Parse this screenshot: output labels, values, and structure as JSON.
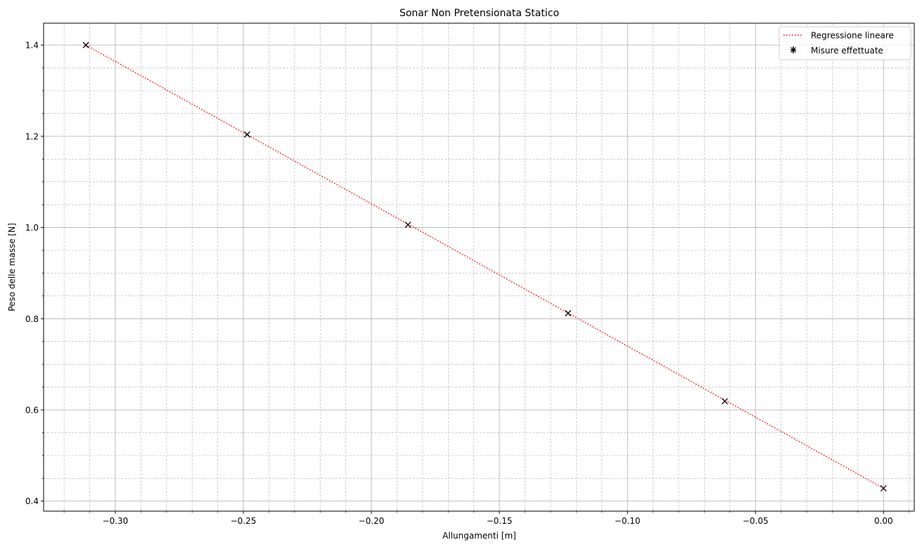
{
  "chart_data": {
    "type": "scatter",
    "title": "Sonar Non Pretensionata Statico",
    "xlabel": "Allungamenti [m]",
    "ylabel": "Peso delle masse [N]",
    "xlim": [
      -0.328,
      0.012
    ],
    "ylim": [
      0.378,
      1.448
    ],
    "x_ticks": [
      -0.3,
      -0.25,
      -0.2,
      -0.15,
      -0.1,
      -0.05,
      0.0
    ],
    "x_tick_labels": [
      "−0.30",
      "−0.25",
      "−0.20",
      "−0.15",
      "−0.10",
      "−0.05",
      "0.00"
    ],
    "y_ticks": [
      0.4,
      0.6,
      0.8,
      1.0,
      1.2,
      1.4
    ],
    "y_tick_labels": [
      "0.4",
      "0.6",
      "0.8",
      "1.0",
      "1.2",
      "1.4"
    ],
    "minor_x_step": 0.01,
    "minor_y_step": 0.05,
    "grid": true,
    "legend_position": "top-right",
    "series": [
      {
        "name": "Regressione lineare",
        "kind": "line",
        "style": "dotted",
        "color": "#ff0000",
        "x": [
          -0.3115,
          0.0
        ],
        "y": [
          1.4,
          0.428
        ]
      },
      {
        "name": "Misure effettuate",
        "kind": "markers",
        "marker": "x",
        "color": "#000000",
        "x": [
          -0.3115,
          -0.2485,
          -0.1857,
          -0.1232,
          -0.062,
          0.0
        ],
        "y": [
          1.4,
          1.204,
          1.006,
          0.812,
          0.619,
          0.428
        ]
      }
    ]
  }
}
